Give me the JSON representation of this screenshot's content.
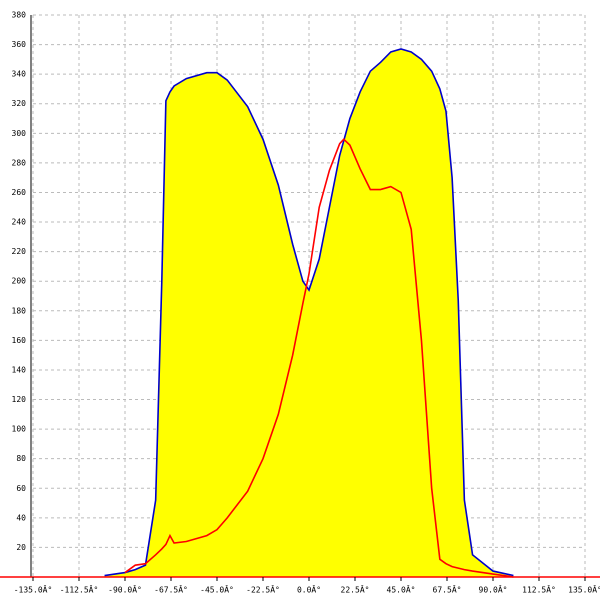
{
  "chart_data": {
    "type": "area",
    "x": [
      -100,
      -90,
      -85,
      -80,
      -75,
      -72,
      -70,
      -68,
      -66,
      -60,
      -50,
      -45,
      -40,
      -30,
      -22.5,
      -15,
      -8,
      -3,
      0,
      5,
      10,
      15,
      17,
      20,
      25,
      30,
      35,
      40,
      45,
      50,
      55,
      60,
      64,
      67,
      70,
      73,
      76,
      80,
      90,
      100
    ],
    "series": [
      {
        "color": "#0000cc",
        "fill": "#ffff00",
        "values": [
          1,
          3,
          5,
          8,
          52,
          200,
          322,
          328,
          332,
          337,
          341,
          341,
          336,
          318,
          296,
          265,
          225,
          200,
          194,
          215,
          250,
          285,
          295,
          310,
          328,
          342,
          348,
          355,
          357,
          355,
          350,
          342,
          330,
          315,
          270,
          187,
          52,
          15,
          4,
          1
        ]
      },
      {
        "color": "#ff0000",
        "values": [
          null,
          3,
          8,
          9,
          15,
          19,
          22,
          28,
          23,
          24,
          28,
          32,
          40,
          58,
          80,
          110,
          150,
          185,
          205,
          250,
          275,
          293,
          296,
          292,
          276,
          262,
          262,
          264,
          260,
          235,
          160,
          60,
          12,
          9,
          7,
          6,
          5,
          4,
          2,
          0
        ]
      }
    ],
    "xlim": [
      -135,
      135
    ],
    "xticks": [
      {
        "value": -135,
        "label": "-135.0Â°"
      },
      {
        "value": -112.5,
        "label": "-112.5Â°"
      },
      {
        "value": -90,
        "label": "-90.0Â°"
      },
      {
        "value": -67.5,
        "label": "-67.5Â°"
      },
      {
        "value": -45,
        "label": "-45.0Â°"
      },
      {
        "value": -22.5,
        "label": "-22.5Â°"
      },
      {
        "value": 0,
        "label": "0.0Â°"
      },
      {
        "value": 22.5,
        "label": "22.5Â°"
      },
      {
        "value": 45,
        "label": "45.0Â°"
      },
      {
        "value": 67.5,
        "label": "67.5Â°"
      },
      {
        "value": 90,
        "label": "90.0Â°"
      },
      {
        "value": 112.5,
        "label": "112.5Â°"
      },
      {
        "value": 135,
        "label": "135.0Â°"
      }
    ],
    "ylim": [
      0,
      380
    ],
    "yticks": [
      20,
      40,
      60,
      80,
      100,
      120,
      140,
      160,
      180,
      200,
      220,
      240,
      260,
      280,
      300,
      320,
      340,
      360,
      380
    ],
    "grid": true
  }
}
